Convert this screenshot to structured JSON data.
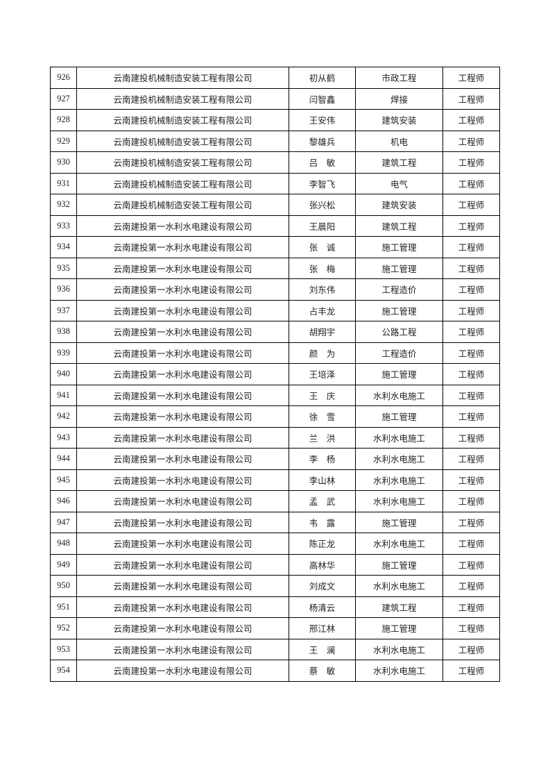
{
  "rows": [
    {
      "no": "926",
      "company": "云南建投机械制造安装工程有限公司",
      "name": "初从鹤",
      "specialty": "市政工程",
      "title": "工程师"
    },
    {
      "no": "927",
      "company": "云南建投机械制造安装工程有限公司",
      "name": "闫智鑫",
      "specialty": "焊接",
      "title": "工程师"
    },
    {
      "no": "928",
      "company": "云南建投机械制造安装工程有限公司",
      "name": "王安伟",
      "specialty": "建筑安装",
      "title": "工程师"
    },
    {
      "no": "929",
      "company": "云南建投机械制造安装工程有限公司",
      "name": "黎雄兵",
      "specialty": "机电",
      "title": "工程师"
    },
    {
      "no": "930",
      "company": "云南建投机械制造安装工程有限公司",
      "name": "吕　敏",
      "specialty": "建筑工程",
      "title": "工程师"
    },
    {
      "no": "931",
      "company": "云南建投机械制造安装工程有限公司",
      "name": "李智飞",
      "specialty": "电气",
      "title": "工程师"
    },
    {
      "no": "932",
      "company": "云南建投机械制造安装工程有限公司",
      "name": "张兴松",
      "specialty": "建筑安装",
      "title": "工程师"
    },
    {
      "no": "933",
      "company": "云南建投第一水利水电建设有限公司",
      "name": "王晨阳",
      "specialty": "建筑工程",
      "title": "工程师"
    },
    {
      "no": "934",
      "company": "云南建投第一水利水电建设有限公司",
      "name": "张　诚",
      "specialty": "施工管理",
      "title": "工程师"
    },
    {
      "no": "935",
      "company": "云南建投第一水利水电建设有限公司",
      "name": "张　梅",
      "specialty": "施工管理",
      "title": "工程师"
    },
    {
      "no": "936",
      "company": "云南建投第一水利水电建设有限公司",
      "name": "刘东伟",
      "specialty": "工程造价",
      "title": "工程师"
    },
    {
      "no": "937",
      "company": "云南建投第一水利水电建设有限公司",
      "name": "占丰龙",
      "specialty": "施工管理",
      "title": "工程师"
    },
    {
      "no": "938",
      "company": "云南建投第一水利水电建设有限公司",
      "name": "胡翔宇",
      "specialty": "公路工程",
      "title": "工程师"
    },
    {
      "no": "939",
      "company": "云南建投第一水利水电建设有限公司",
      "name": "颜　为",
      "specialty": "工程造价",
      "title": "工程师"
    },
    {
      "no": "940",
      "company": "云南建投第一水利水电建设有限公司",
      "name": "王培泽",
      "specialty": "施工管理",
      "title": "工程师"
    },
    {
      "no": "941",
      "company": "云南建投第一水利水电建设有限公司",
      "name": "王　庆",
      "specialty": "水利水电施工",
      "title": "工程师"
    },
    {
      "no": "942",
      "company": "云南建投第一水利水电建设有限公司",
      "name": "徐　雪",
      "specialty": "施工管理",
      "title": "工程师"
    },
    {
      "no": "943",
      "company": "云南建投第一水利水电建设有限公司",
      "name": "兰　洪",
      "specialty": "水利水电施工",
      "title": "工程师"
    },
    {
      "no": "944",
      "company": "云南建投第一水利水电建设有限公司",
      "name": "李　杨",
      "specialty": "水利水电施工",
      "title": "工程师"
    },
    {
      "no": "945",
      "company": "云南建投第一水利水电建设有限公司",
      "name": "李山林",
      "specialty": "水利水电施工",
      "title": "工程师"
    },
    {
      "no": "946",
      "company": "云南建投第一水利水电建设有限公司",
      "name": "孟　武",
      "specialty": "水利水电施工",
      "title": "工程师"
    },
    {
      "no": "947",
      "company": "云南建投第一水利水电建设有限公司",
      "name": "韦　露",
      "specialty": "施工管理",
      "title": "工程师"
    },
    {
      "no": "948",
      "company": "云南建投第一水利水电建设有限公司",
      "name": "陈正龙",
      "specialty": "水利水电施工",
      "title": "工程师"
    },
    {
      "no": "949",
      "company": "云南建投第一水利水电建设有限公司",
      "name": "高林华",
      "specialty": "施工管理",
      "title": "工程师"
    },
    {
      "no": "950",
      "company": "云南建投第一水利水电建设有限公司",
      "name": "刘成文",
      "specialty": "水利水电施工",
      "title": "工程师"
    },
    {
      "no": "951",
      "company": "云南建投第一水利水电建设有限公司",
      "name": "杨清云",
      "specialty": "建筑工程",
      "title": "工程师"
    },
    {
      "no": "952",
      "company": "云南建投第一水利水电建设有限公司",
      "name": "邢江林",
      "specialty": "施工管理",
      "title": "工程师"
    },
    {
      "no": "953",
      "company": "云南建投第一水利水电建设有限公司",
      "name": "王　澜",
      "specialty": "水利水电施工",
      "title": "工程师"
    },
    {
      "no": "954",
      "company": "云南建投第一水利水电建设有限公司",
      "name": "蔡　敏",
      "specialty": "水利水电施工",
      "title": "工程师"
    }
  ]
}
